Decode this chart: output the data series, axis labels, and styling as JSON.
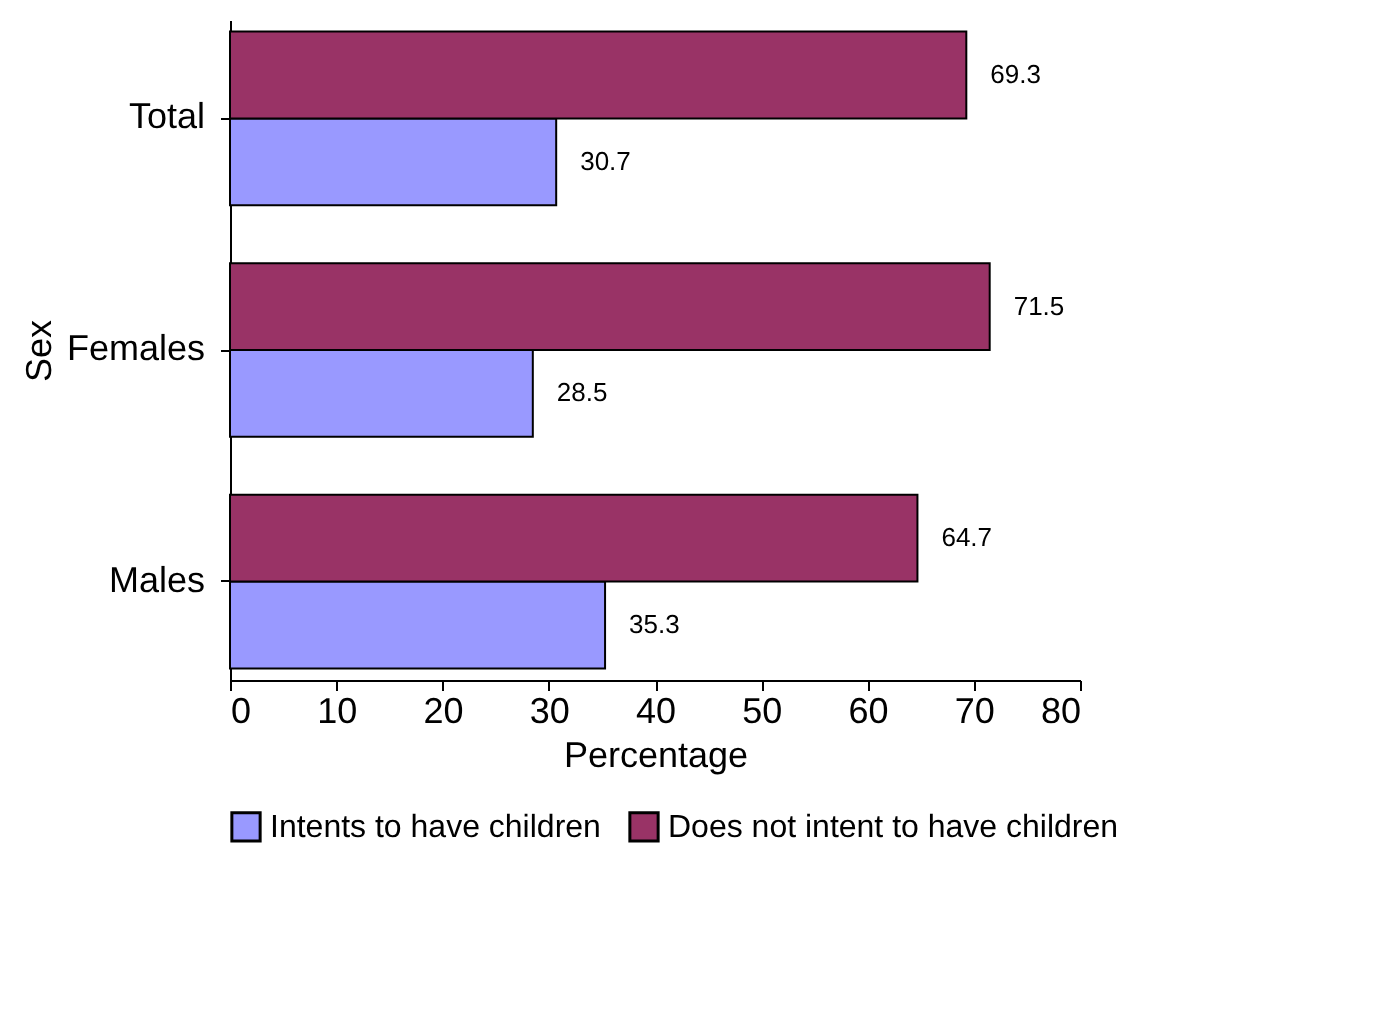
{
  "chart_data": {
    "type": "bar",
    "orientation": "horizontal",
    "xlabel": "Percentage",
    "ylabel": "Sex",
    "categories": [
      "Total",
      "Females",
      "Males"
    ],
    "series": [
      {
        "name": "Intents to have children",
        "color": "#9999ff",
        "values": [
          30.7,
          28.5,
          35.3
        ]
      },
      {
        "name": "Does not intent to have children",
        "color": "#993366",
        "values": [
          69.3,
          71.5,
          64.7
        ]
      }
    ],
    "xlim": [
      0,
      80
    ],
    "xticks": [
      0,
      10,
      20,
      30,
      40,
      50,
      60,
      70,
      80
    ],
    "data_labels": true,
    "legend": "bottom",
    "grid": false
  }
}
